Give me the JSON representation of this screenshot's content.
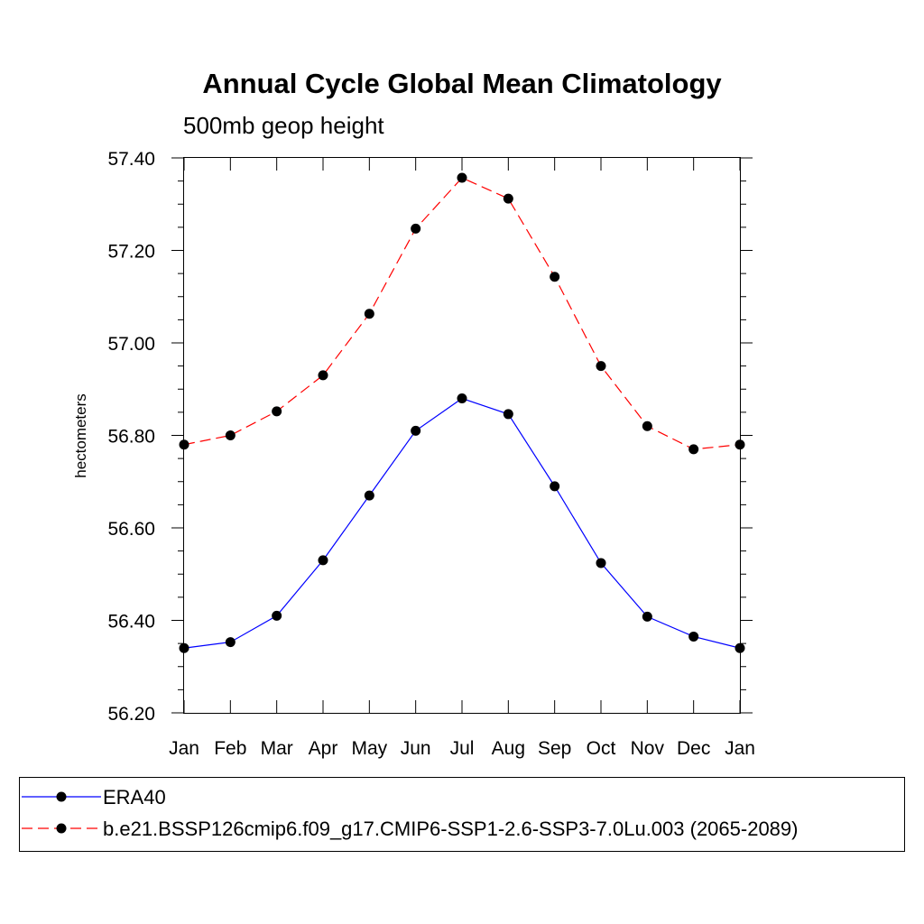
{
  "chart_data": {
    "type": "line",
    "title": "Annual Cycle Global Mean Climatology",
    "subtitle": "500mb geop height",
    "xlabel": "",
    "ylabel": "hectometers",
    "categories": [
      "Jan",
      "Feb",
      "Mar",
      "Apr",
      "May",
      "Jun",
      "Jul",
      "Aug",
      "Sep",
      "Oct",
      "Nov",
      "Dec",
      "Jan"
    ],
    "ylim": [
      56.2,
      57.4
    ],
    "yticks": [
      "56.20",
      "56.40",
      "56.60",
      "56.80",
      "57.00",
      "57.20",
      "57.40"
    ],
    "grid": false,
    "legend_position": "bottom",
    "series": [
      {
        "name": "ERA40",
        "color": "#0000ff",
        "dash": "solid",
        "marker": "filled-circle",
        "values": [
          56.34,
          56.353,
          56.41,
          56.53,
          56.67,
          56.81,
          56.88,
          56.846,
          56.69,
          56.524,
          56.408,
          56.365,
          56.34
        ]
      },
      {
        "name": "b.e21.BSSP126cmip6.f09_g17.CMIP6-SSP1-2.6-SSP3-7.0Lu.003 (2065-2089)",
        "color": "#ff0000",
        "dash": "dashed",
        "marker": "filled-circle",
        "values": [
          56.78,
          56.8,
          56.852,
          56.93,
          57.063,
          57.247,
          57.357,
          57.312,
          57.143,
          56.95,
          56.82,
          56.77,
          56.78
        ]
      }
    ]
  }
}
